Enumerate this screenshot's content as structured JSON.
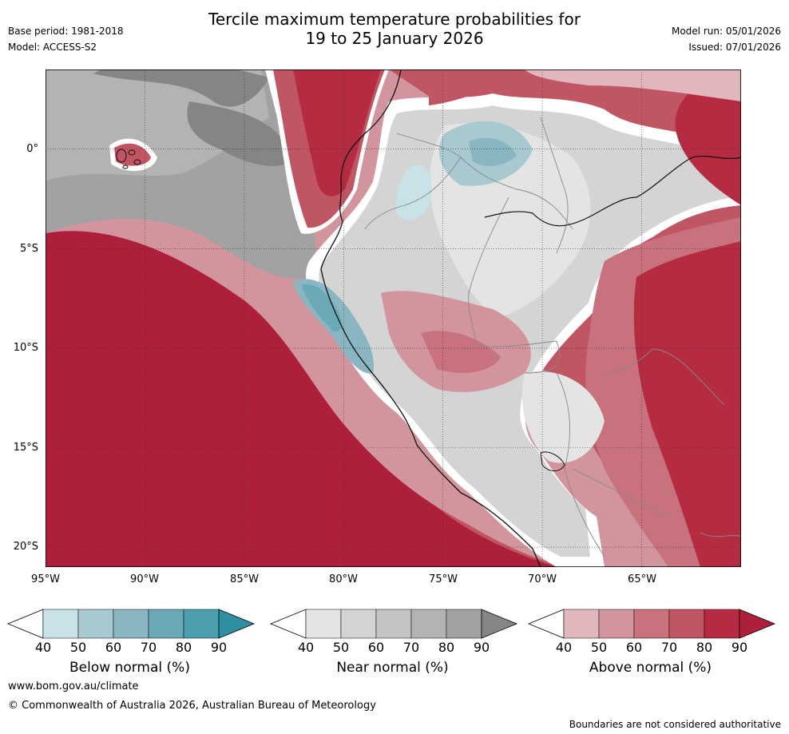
{
  "header": {
    "title_line1": "Tercile maximum temperature probabilities for",
    "title_line2": "19 to 25 January 2026",
    "base_period": "Base period: 1981-2018",
    "model": "Model: ACCESS-S2",
    "model_run": "Model run: 05/01/2026",
    "issued": "Issued: 07/01/2026"
  },
  "map": {
    "lat_labels": [
      "0°",
      "5°S",
      "10°S",
      "15°S",
      "20°S"
    ],
    "lon_labels": [
      "95°W",
      "90°W",
      "85°W",
      "80°W",
      "75°W",
      "70°W",
      "65°W"
    ],
    "lon_range": [
      -95,
      -60
    ],
    "lat_range": [
      -21,
      4
    ]
  },
  "legend": {
    "below": {
      "label": "Below normal (%)",
      "ticks": [
        "40",
        "50",
        "60",
        "70",
        "80",
        "90"
      ],
      "colors": [
        "#ffffff",
        "#c9e2e8",
        "#a7c9cf",
        "#89b6c1",
        "#6aa9b5",
        "#4b9fae",
        "#2f8fa2"
      ]
    },
    "near": {
      "label": "Near normal (%)",
      "ticks": [
        "40",
        "50",
        "60",
        "70",
        "80",
        "90"
      ],
      "colors": [
        "#ffffff",
        "#e4e4e4",
        "#d4d4d4",
        "#c4c4c4",
        "#b3b3b3",
        "#a2a2a2",
        "#858585"
      ]
    },
    "above": {
      "label": "Above normal (%)",
      "ticks": [
        "40",
        "50",
        "60",
        "70",
        "80",
        "90"
      ],
      "colors": [
        "#ffffff",
        "#e1b7bd",
        "#d3959d",
        "#c8727e",
        "#c05563",
        "#b52c42",
        "#ad1f3a"
      ]
    }
  },
  "footer": {
    "url": "www.bom.gov.au/climate",
    "copyright": "© Commonwealth of Australia 2026, Australian Bureau of Meteorology",
    "disclaimer": "Boundaries are not considered authoritative"
  }
}
